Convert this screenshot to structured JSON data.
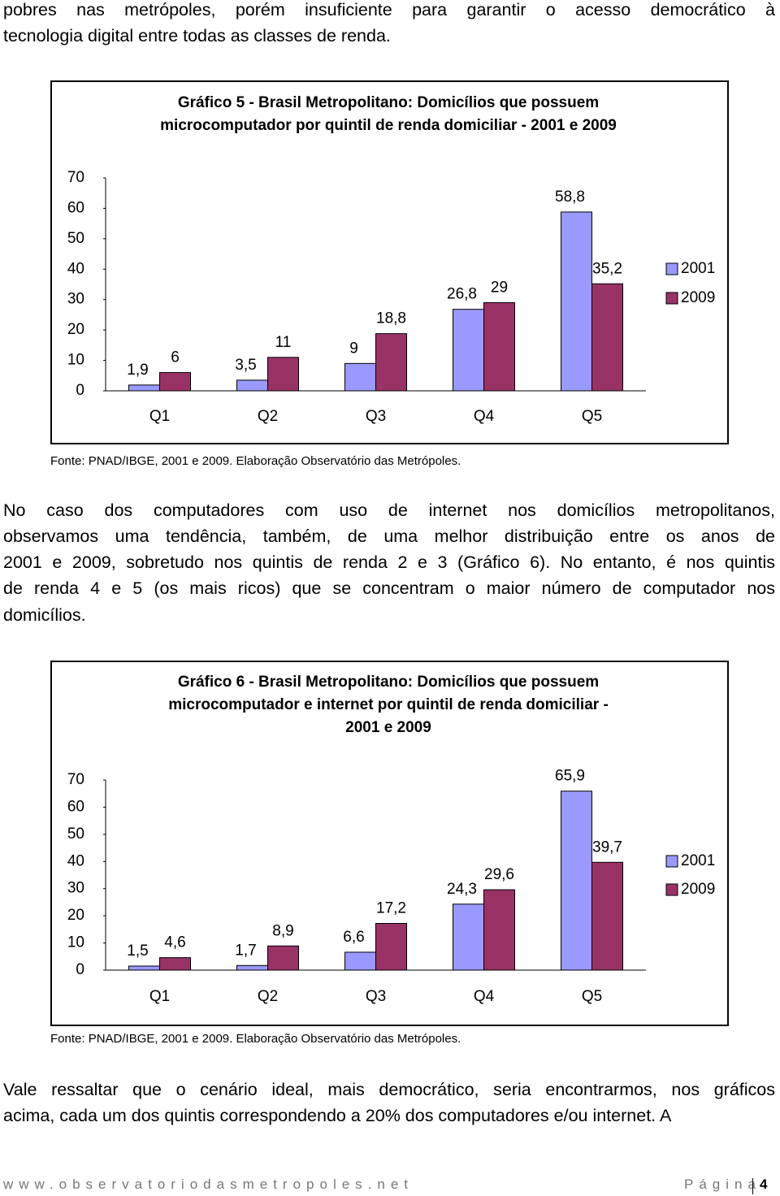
{
  "intro_lines": [
    "pobres nas metrópoles, porém insuficiente para garantir o acesso democrático à",
    "tecnologia digital entre todas as classes de renda."
  ],
  "chart_data": [
    {
      "type": "bar",
      "title_lines": [
        "Gráfico 5 - Brasil Metropolitano: Domicílios que possuem",
        "microcomputador por quintil de renda domiciliar - 2001 e 2009"
      ],
      "categories": [
        "Q1",
        "Q2",
        "Q3",
        "Q4",
        "Q5"
      ],
      "series": [
        {
          "name": "2001",
          "color": "#9999ff",
          "values": [
            1.9,
            3.5,
            9,
            26.8,
            58.8
          ],
          "value_labels": [
            "1,9",
            "3,5",
            "9",
            "26,8",
            "58,8"
          ]
        },
        {
          "name": "2009",
          "color": "#993366",
          "values": [
            6,
            11,
            18.8,
            29,
            35.2
          ],
          "value_labels": [
            "6",
            "11",
            "18,8",
            "29",
            "35,2"
          ]
        }
      ],
      "ylim": [
        0,
        70
      ],
      "yticks": [
        0,
        10,
        20,
        30,
        40,
        50,
        60,
        70
      ],
      "grid": false,
      "legend": "right",
      "source": "Fonte: PNAD/IBGE, 2001 e 2009. Elaboração Observatório das Metrópoles."
    },
    {
      "type": "bar",
      "title_lines": [
        "Gráfico 6 - Brasil Metropolitano: Domicílios que possuem",
        "microcomputador e internet por quintil de renda domiciliar -",
        "2001 e 2009"
      ],
      "categories": [
        "Q1",
        "Q2",
        "Q3",
        "Q4",
        "Q5"
      ],
      "series": [
        {
          "name": "2001",
          "color": "#9999ff",
          "values": [
            1.5,
            1.7,
            6.6,
            24.3,
            65.9
          ],
          "value_labels": [
            "1,5",
            "1,7",
            "6,6",
            "24,3",
            "65,9"
          ]
        },
        {
          "name": "2009",
          "color": "#993366",
          "values": [
            4.6,
            8.9,
            17.2,
            29.6,
            39.7
          ],
          "value_labels": [
            "4,6",
            "8,9",
            "17,2",
            "29,6",
            "39,7"
          ]
        }
      ],
      "ylim": [
        0,
        70
      ],
      "yticks": [
        0,
        10,
        20,
        30,
        40,
        50,
        60,
        70
      ],
      "grid": false,
      "legend": "right",
      "source": "Fonte: PNAD/IBGE, 2001 e 2009. Elaboração Observatório das Metrópoles."
    }
  ],
  "middle_lines": [
    "No caso dos computadores com uso de internet nos domicílios metropolitanos,",
    "observamos uma tendência, também, de uma melhor distribuição entre os anos de",
    "2001 e 2009, sobretudo nos quintis de renda 2 e 3 (Gráfico 6). No entanto, é nos quintis",
    "de renda 4 e 5 (os mais ricos) que se concentram o maior número de computador nos",
    "domicílios."
  ],
  "closing_lines": [
    "Vale ressaltar que o cenário ideal, mais democrático, seria encontrarmos, nos gráficos",
    "acima, cada um dos quintis correspondendo a 20% dos computadores e/ou internet. A"
  ],
  "footer": {
    "site": "www.observatoriodasmetropoles.net",
    "page_word": "Página",
    "page_number": "4"
  }
}
